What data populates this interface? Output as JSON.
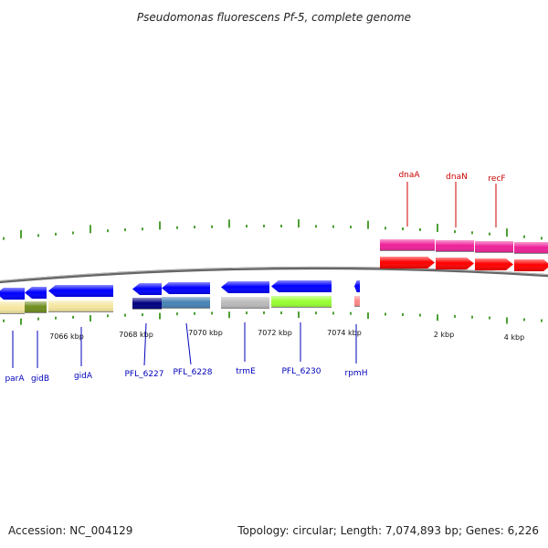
{
  "title": "Pseudomonas fluorescens Pf-5, complete genome",
  "footer": {
    "accession": "Accession: NC_004129",
    "topology": "Topology: circular; Length: 7,074,893 bp; Genes: 6,226"
  },
  "colors": {
    "forward_label": "#cc0000",
    "reverse_label": "#0000bb",
    "tick": "#228800",
    "backbone": "#666666"
  },
  "scale_labels": [
    "7066 kbp",
    "7068 kbp",
    "7070 kbp",
    "7072 kbp",
    "7074 kbp",
    "2 kbp",
    "4 kbp"
  ],
  "forward_genes": [
    {
      "label": "dnaA",
      "color": "#ff0000",
      "cog_color": "#ee2299"
    },
    {
      "label": "dnaN",
      "color": "#ff0000",
      "cog_color": "#ee2299"
    },
    {
      "label": "recF",
      "color": "#ff0000",
      "cog_color": "#ee2299"
    },
    {
      "label": "",
      "color": "#ff0000",
      "cog_color": "#ee2299"
    }
  ],
  "reverse_genes": [
    {
      "label": "parA",
      "color": "#0000ff",
      "cog_color": "#f5e7a0"
    },
    {
      "label": "gidB",
      "color": "#0000ff",
      "cog_color": "#6e8c1e"
    },
    {
      "label": "gidA",
      "color": "#0000ff",
      "cog_color": "#f5e7a0"
    },
    {
      "label": "PFL_6227",
      "color": "#0000ff",
      "cog_color": "#000080"
    },
    {
      "label": "PFL_6228",
      "color": "#0000ff",
      "cog_color": "#4682b4"
    },
    {
      "label": "trmE",
      "color": "#0000ff",
      "cog_color": "#bbbbbb"
    },
    {
      "label": "PFL_6230",
      "color": "#0000ff",
      "cog_color": "#99ff33"
    },
    {
      "label": "rpmH",
      "color": "#0000ff",
      "cog_color": "#ff8888"
    }
  ]
}
